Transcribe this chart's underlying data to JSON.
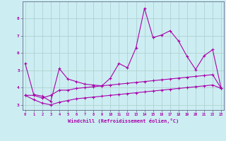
{
  "xlabel": "Windchill (Refroidissement éolien,°C)",
  "background_color": "#cceef2",
  "grid_color": "#aacccc",
  "line_color": "#aa00aa",
  "spine_color": "#888888",
  "x_values": [
    0,
    1,
    2,
    3,
    4,
    5,
    6,
    7,
    8,
    9,
    10,
    11,
    12,
    13,
    14,
    15,
    16,
    17,
    18,
    19,
    20,
    21,
    22,
    23
  ],
  "series1": [
    5.4,
    3.6,
    3.5,
    3.2,
    5.1,
    4.5,
    4.35,
    4.2,
    4.15,
    4.1,
    4.55,
    5.4,
    5.15,
    6.3,
    8.6,
    6.9,
    7.05,
    7.3,
    6.7,
    5.8,
    5.05,
    5.85,
    6.2,
    3.95
  ],
  "series2": [
    3.55,
    3.55,
    3.4,
    3.55,
    3.85,
    3.85,
    3.95,
    4.0,
    4.05,
    4.1,
    4.15,
    4.2,
    4.25,
    4.3,
    4.35,
    4.4,
    4.45,
    4.5,
    4.55,
    4.6,
    4.65,
    4.7,
    4.75,
    3.95
  ],
  "series3": [
    3.55,
    3.3,
    3.1,
    3.0,
    3.15,
    3.25,
    3.35,
    3.4,
    3.45,
    3.5,
    3.55,
    3.6,
    3.65,
    3.7,
    3.75,
    3.8,
    3.85,
    3.9,
    3.95,
    4.0,
    4.05,
    4.1,
    4.15,
    3.95
  ],
  "ylim": [
    2.7,
    9.0
  ],
  "yticks": [
    3,
    4,
    5,
    6,
    7,
    8
  ],
  "xlim": [
    -0.3,
    23.3
  ],
  "xticks": [
    0,
    1,
    2,
    3,
    4,
    5,
    6,
    7,
    8,
    9,
    10,
    11,
    12,
    13,
    14,
    15,
    16,
    17,
    18,
    19,
    20,
    21,
    22,
    23
  ],
  "figsize": [
    3.2,
    2.0
  ],
  "dpi": 100
}
